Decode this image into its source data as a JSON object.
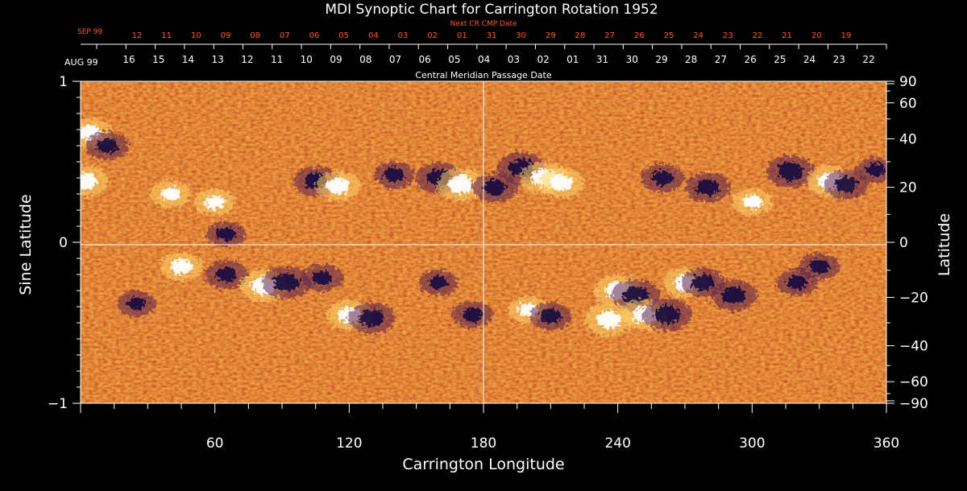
{
  "chart_data": {
    "type": "heatmap",
    "title": "MDI Synoptic Chart for Carrington Rotation 1952",
    "xlabel": "Carrington Longitude",
    "ylabel_left": "Sine Latitude",
    "ylabel_right": "Latitude",
    "xlim": [
      0,
      360
    ],
    "ylim": [
      -1,
      1
    ],
    "x_ticks": [
      60,
      120,
      180,
      240,
      300,
      360
    ],
    "y_left_ticks": [
      {
        "v": 1,
        "label": "1"
      },
      {
        "v": 0,
        "label": "0"
      },
      {
        "v": -1,
        "label": "−1"
      }
    ],
    "y_right_ticks": [
      {
        "deg": 90,
        "label": "90"
      },
      {
        "deg": 60,
        "label": "60"
      },
      {
        "deg": 40,
        "label": "40"
      },
      {
        "deg": 20,
        "label": "20"
      },
      {
        "deg": 0,
        "label": "0"
      },
      {
        "deg": -20,
        "label": "−20"
      },
      {
        "deg": -40,
        "label": "−40"
      },
      {
        "deg": -60,
        "label": "−60"
      },
      {
        "deg": -90,
        "label": "−90"
      }
    ],
    "cmp_axis": {
      "month_label": "AUG 99",
      "label": "Central Meridian Passage Date",
      "days": [
        "16",
        "15",
        "14",
        "13",
        "12",
        "11",
        "10",
        "09",
        "08",
        "07",
        "06",
        "05",
        "04",
        "03",
        "02",
        "01",
        "31",
        "30",
        "29",
        "28",
        "27",
        "26",
        "25",
        "24",
        "23",
        "22"
      ]
    },
    "next_cr_axis": {
      "month_label": "SEP 99",
      "label": "Next CR CMP Date",
      "days": [
        "12",
        "11",
        "10",
        "09",
        "08",
        "07",
        "06",
        "05",
        "04",
        "03",
        "02",
        "01",
        "31",
        "30",
        "29",
        "28",
        "27",
        "26",
        "25",
        "24",
        "23",
        "22",
        "21",
        "20",
        "19"
      ]
    },
    "colors": {
      "background_field": "#ee4a12",
      "positive_polarity": "#ffffff",
      "negative_polarity": "#1a1040",
      "text": "#ffffff",
      "next_cr_text": "#ff5522"
    },
    "active_regions": [
      {
        "lon": 4,
        "sinlat": 0.68,
        "sign": 1,
        "strength": 0.8
      },
      {
        "lon": 12,
        "sinlat": 0.6,
        "sign": -1,
        "strength": 0.7
      },
      {
        "lon": 2,
        "sinlat": 0.38,
        "sign": 1,
        "strength": 0.9
      },
      {
        "lon": 40,
        "sinlat": 0.3,
        "sign": 1,
        "strength": 0.6
      },
      {
        "lon": 60,
        "sinlat": 0.25,
        "sign": 1,
        "strength": 0.6
      },
      {
        "lon": 65,
        "sinlat": 0.05,
        "sign": -1,
        "strength": 0.5
      },
      {
        "lon": 105,
        "sinlat": 0.38,
        "sign": -1,
        "strength": 0.8
      },
      {
        "lon": 115,
        "sinlat": 0.35,
        "sign": 1,
        "strength": 0.8
      },
      {
        "lon": 140,
        "sinlat": 0.42,
        "sign": -1,
        "strength": 0.6
      },
      {
        "lon": 160,
        "sinlat": 0.4,
        "sign": -1,
        "strength": 0.9
      },
      {
        "lon": 170,
        "sinlat": 0.36,
        "sign": 1,
        "strength": 1.0
      },
      {
        "lon": 185,
        "sinlat": 0.34,
        "sign": -1,
        "strength": 0.8
      },
      {
        "lon": 197,
        "sinlat": 0.46,
        "sign": -1,
        "strength": 1.0
      },
      {
        "lon": 207,
        "sinlat": 0.4,
        "sign": 1,
        "strength": 1.0
      },
      {
        "lon": 215,
        "sinlat": 0.37,
        "sign": 1,
        "strength": 0.8
      },
      {
        "lon": 260,
        "sinlat": 0.4,
        "sign": -1,
        "strength": 0.7
      },
      {
        "lon": 280,
        "sinlat": 0.34,
        "sign": -1,
        "strength": 0.8
      },
      {
        "lon": 300,
        "sinlat": 0.25,
        "sign": 1,
        "strength": 0.6
      },
      {
        "lon": 317,
        "sinlat": 0.44,
        "sign": -1,
        "strength": 1.0
      },
      {
        "lon": 335,
        "sinlat": 0.38,
        "sign": 1,
        "strength": 1.0
      },
      {
        "lon": 342,
        "sinlat": 0.36,
        "sign": -1,
        "strength": 0.8
      },
      {
        "lon": 355,
        "sinlat": 0.45,
        "sign": -1,
        "strength": 0.5
      },
      {
        "lon": 25,
        "sinlat": -0.38,
        "sign": -1,
        "strength": 0.5
      },
      {
        "lon": 45,
        "sinlat": -0.15,
        "sign": 1,
        "strength": 0.7
      },
      {
        "lon": 65,
        "sinlat": -0.2,
        "sign": -1,
        "strength": 0.7
      },
      {
        "lon": 82,
        "sinlat": -0.27,
        "sign": 1,
        "strength": 1.0
      },
      {
        "lon": 92,
        "sinlat": -0.25,
        "sign": -1,
        "strength": 1.0
      },
      {
        "lon": 108,
        "sinlat": -0.22,
        "sign": -1,
        "strength": 0.6
      },
      {
        "lon": 120,
        "sinlat": -0.45,
        "sign": 1,
        "strength": 0.8
      },
      {
        "lon": 130,
        "sinlat": -0.47,
        "sign": -1,
        "strength": 0.9
      },
      {
        "lon": 160,
        "sinlat": -0.25,
        "sign": -1,
        "strength": 0.5
      },
      {
        "lon": 175,
        "sinlat": -0.45,
        "sign": -1,
        "strength": 0.6
      },
      {
        "lon": 200,
        "sinlat": -0.42,
        "sign": 1,
        "strength": 0.6
      },
      {
        "lon": 210,
        "sinlat": -0.46,
        "sign": -1,
        "strength": 0.7
      },
      {
        "lon": 240,
        "sinlat": -0.3,
        "sign": 1,
        "strength": 1.0
      },
      {
        "lon": 248,
        "sinlat": -0.33,
        "sign": -1,
        "strength": 1.0
      },
      {
        "lon": 236,
        "sinlat": -0.48,
        "sign": 1,
        "strength": 1.0
      },
      {
        "lon": 252,
        "sinlat": -0.45,
        "sign": 1,
        "strength": 0.9
      },
      {
        "lon": 262,
        "sinlat": -0.45,
        "sign": -1,
        "strength": 1.0
      },
      {
        "lon": 270,
        "sinlat": -0.25,
        "sign": 1,
        "strength": 0.8
      },
      {
        "lon": 278,
        "sinlat": -0.25,
        "sign": -1,
        "strength": 0.8
      },
      {
        "lon": 292,
        "sinlat": -0.33,
        "sign": -1,
        "strength": 0.9
      },
      {
        "lon": 320,
        "sinlat": -0.25,
        "sign": -1,
        "strength": 0.6
      },
      {
        "lon": 330,
        "sinlat": -0.15,
        "sign": -1,
        "strength": 0.6
      }
    ]
  }
}
